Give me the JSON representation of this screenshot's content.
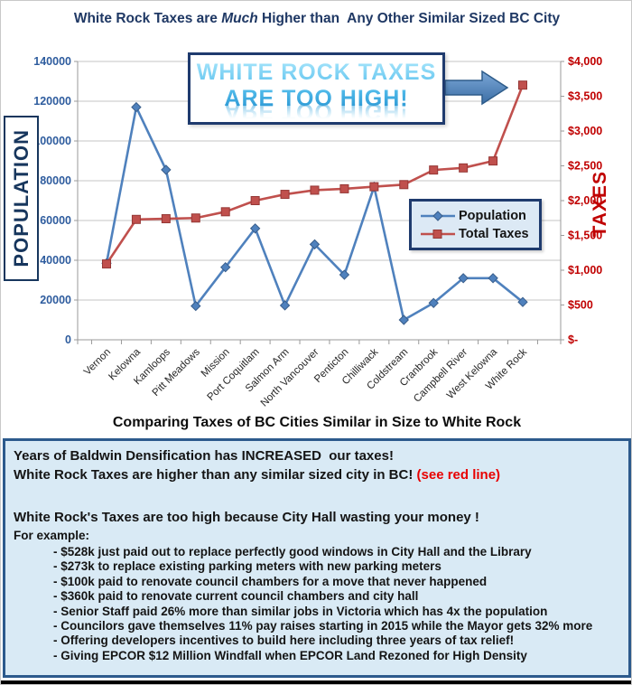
{
  "title": {
    "part1": "White Rock Taxes are ",
    "em": "Much",
    "part2": " Higher than  Any Other Similar Sized BC City"
  },
  "callout": {
    "line1": "WHITE ROCK TAXES",
    "line2": "ARE TOO HIGH!"
  },
  "subtitle": "Comparing Taxes of BC Cities Similar in Size to White Rock",
  "chart_data": {
    "type": "line",
    "categories": [
      "Vernon",
      "Kelowna",
      "Kamloops",
      "Pitt Meadows",
      "Mission",
      "Port Coquitlam",
      "Salmon Arm",
      "North Vancouver",
      "Penticton",
      "Chilliwack",
      "Coldstream",
      "Cranbrook",
      "Campbell River",
      "West Kelowna",
      "White Rock"
    ],
    "series": [
      {
        "name": "Population",
        "axis": "left",
        "color": "#4F81BD",
        "marker": "diamond",
        "values": [
          38500,
          117000,
          85500,
          17000,
          36500,
          56000,
          17300,
          48000,
          32700,
          77000,
          10000,
          18500,
          31000,
          31000,
          19000
        ]
      },
      {
        "name": "Total Taxes",
        "axis": "right",
        "color": "#C0504D",
        "marker": "square",
        "values": [
          1090,
          1730,
          1740,
          1750,
          1840,
          2000,
          2090,
          2150,
          2170,
          2200,
          2230,
          2440,
          2470,
          2570,
          3660
        ]
      }
    ],
    "left_axis": {
      "title": "POPULATION",
      "min": 0,
      "max": 140000,
      "step": 20000,
      "tick_labels": [
        "0",
        "20000",
        "40000",
        "60000",
        "80000",
        "100000",
        "120000",
        "140000"
      ]
    },
    "right_axis": {
      "title": "TAXES",
      "min": 0,
      "max": 4000,
      "step": 500,
      "tick_labels": [
        "$-",
        "$500",
        "$1,000",
        "$1,500",
        "$2,000",
        "$2,500",
        "$3,000",
        "$3,500",
        "$4,000"
      ]
    },
    "grid": true,
    "legend_position": "middle-right",
    "title": "White Rock Taxes are Much Higher than Any Other Similar Sized BC City",
    "xlabel": "",
    "ylabel_left": "POPULATION",
    "ylabel_right": "TAXES"
  },
  "info_box": {
    "line1": "Years of Baldwin Densification has INCREASED  our taxes!",
    "line2_black": "White Rock Taxes are higher than any similar sized city in BC! ",
    "line2_red": "(see red line)",
    "line3": "White Rock's Taxes are too high because City Hall wasting your money !",
    "line4": "For example:",
    "bullets": [
      "- $528k just paid out to replace perfectly good windows in City Hall and the Library",
      "- $273k to replace existing parking meters with new parking meters",
      "- $100k paid to renovate council chambers for a move that never happened",
      "- $360k paid to renovate current council chambers and city hall",
      "- Senior Staff paid 26% more than similar jobs in Victoria which has 4x the population",
      "- Councilors gave themselves 11% pay raises starting in 2015 while the Mayor gets 32% more",
      "- Offering developers incentives to build here including three years of tax relief!",
      "- Giving EPCOR $12 Million Windfall when EPCOR Land Rezoned for High Density"
    ]
  },
  "colors": {
    "title_navy": "#1F3864",
    "population_blue": "#4F81BD",
    "taxes_red": "#C0504D",
    "left_axis_text": "#2E5C9E",
    "right_axis_text": "#C00000",
    "gridline": "#C6C6C6",
    "info_box_bg": "#D9EAF5",
    "info_box_border": "#2C5A8C",
    "callout_text_blue": "#55BEEC",
    "arrow_blue": "#4E81BD"
  }
}
